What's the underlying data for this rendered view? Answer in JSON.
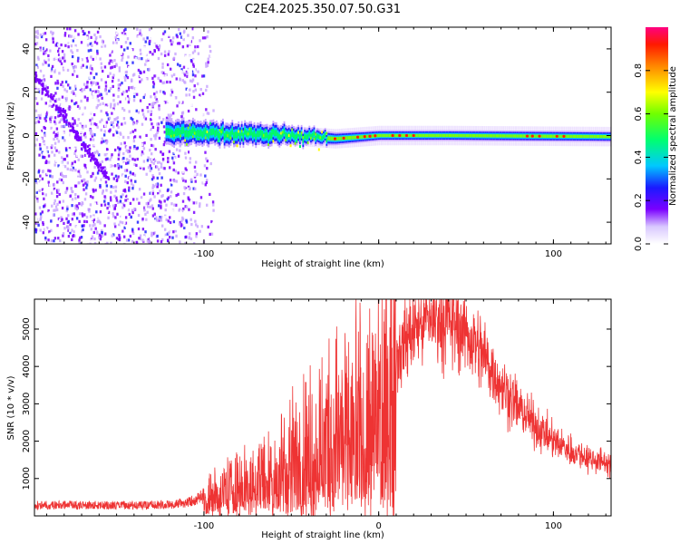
{
  "title": "C2E4.2025.350.07.50.G31",
  "chart_data": [
    {
      "type": "heatmap",
      "xlabel": "Height of straight line (km)",
      "ylabel": "Frequency (Hz)",
      "xlim": [
        -197,
        133
      ],
      "ylim": [
        -50,
        50
      ],
      "x_ticks": [
        -100,
        0,
        100
      ],
      "y_ticks": [
        -40,
        -20,
        0,
        20,
        40
      ],
      "x_tick_labels": [
        "-100",
        "",
        "100"
      ],
      "y_tick_labels": [
        "-40",
        "-20",
        "0",
        "20",
        "40"
      ],
      "colorbar": {
        "label": "Normalized spectral amplitude",
        "range": [
          0,
          1
        ],
        "ticks": [
          0.0,
          0.2,
          0.4,
          0.6,
          0.8
        ],
        "tick_labels": [
          "0.0",
          "0.2",
          "0.4",
          "0.6",
          "0.8"
        ],
        "colors": [
          "#ffffff",
          "#c9a6ff",
          "#7a00ff",
          "#2020ff",
          "#00d0ff",
          "#00ff60",
          "#80ff00",
          "#ffff00",
          "#ff9000",
          "#ff2000",
          "#ff0080"
        ]
      },
      "ridge": [
        {
          "x": -120,
          "y": 1.5,
          "width": 6
        },
        {
          "x": -60,
          "y": 0.5,
          "width": 5
        },
        {
          "x": -25,
          "y": -1.5,
          "width": 3
        },
        {
          "x": 0,
          "y": 0,
          "width": 2.5
        },
        {
          "x": 40,
          "y": 0,
          "width": 2.5
        },
        {
          "x": 133,
          "y": -0.5,
          "width": 2.5
        }
      ],
      "drift_line": {
        "x_start": -197,
        "y_start": 28,
        "x_end": -155,
        "y_end": -20
      }
    },
    {
      "type": "line",
      "xlabel": "Height of straight line (km)",
      "ylabel": "SNR (10 * v/v)",
      "xlim": [
        -197,
        133
      ],
      "ylim": [
        0,
        5800
      ],
      "x_ticks": [
        -100,
        0,
        100
      ],
      "y_ticks": [
        1000,
        2000,
        3000,
        4000,
        5000
      ],
      "x_tick_labels": [
        "-100",
        "0",
        "100"
      ],
      "y_tick_labels": [
        "1000",
        "2000",
        "3000",
        "4000",
        "5000"
      ],
      "color": "#ee3333",
      "envelope": {
        "x": [
          -197,
          -150,
          -120,
          -105,
          -95,
          -80,
          -60,
          -40,
          -25,
          -15,
          -10,
          -5,
          0,
          10,
          20,
          30,
          40,
          50,
          60,
          70,
          80,
          90,
          100,
          110,
          120,
          133
        ],
        "y": [
          250,
          250,
          260,
          350,
          600,
          900,
          1300,
          1900,
          2400,
          2500,
          2800,
          3000,
          3400,
          4300,
          5000,
          5300,
          5250,
          4900,
          4300,
          3500,
          2900,
          2400,
          2000,
          1750,
          1550,
          1400
        ]
      },
      "spikes": [
        {
          "x": -13,
          "y": 5800
        },
        {
          "x": -15,
          "y": 4100
        },
        {
          "x": -18,
          "y": 3700
        }
      ]
    }
  ]
}
